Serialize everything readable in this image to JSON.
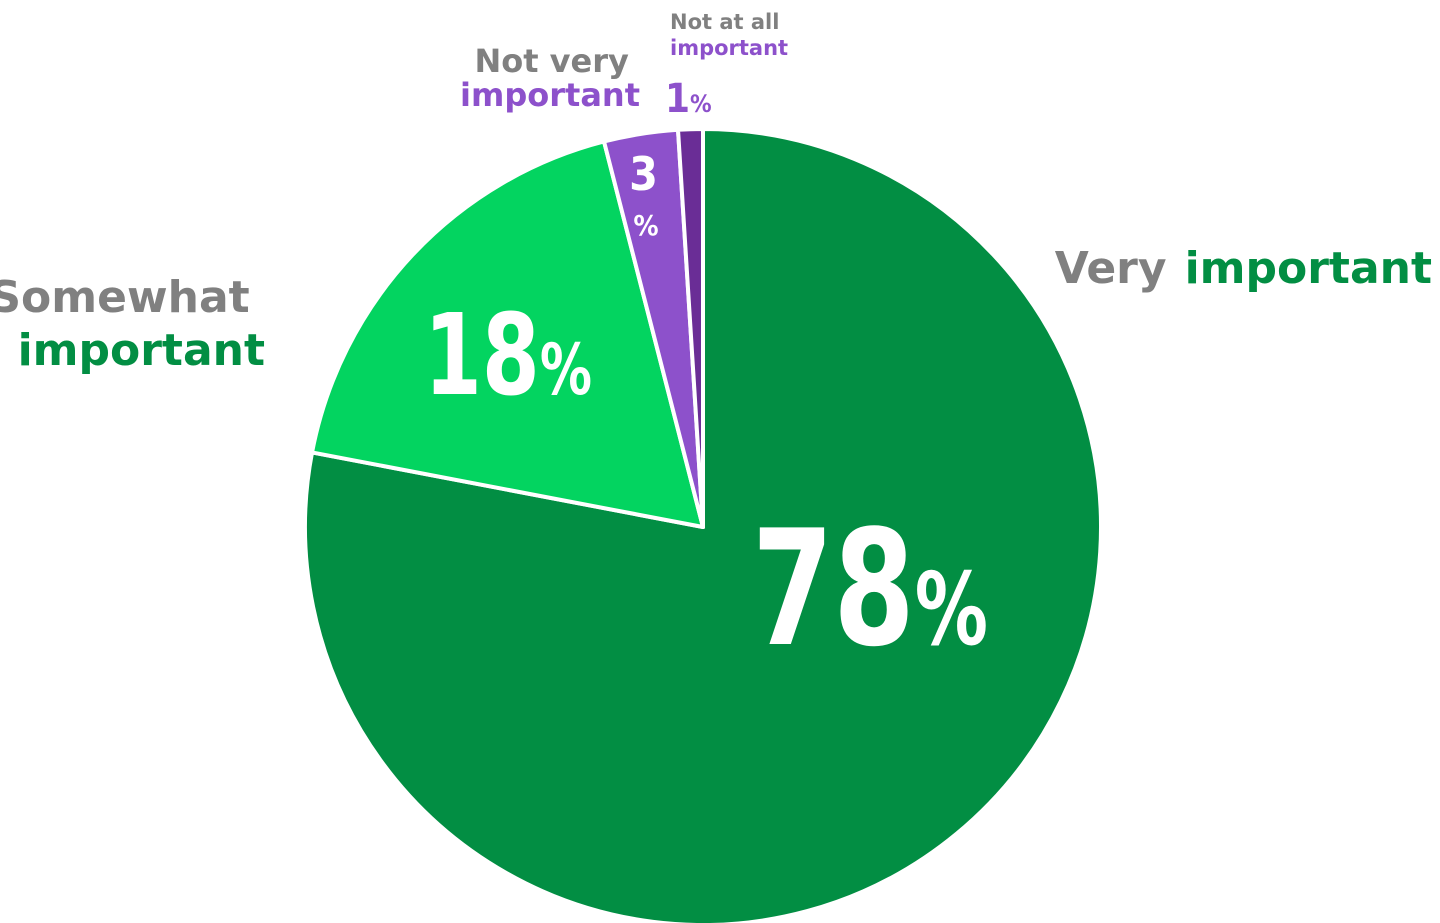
{
  "chart_data": {
    "type": "pie",
    "title": "",
    "slices": [
      {
        "category": "Very important",
        "label_prefix": "Very",
        "label_main": "important",
        "value": 78,
        "display": "78",
        "color": "#028E43",
        "accent": "#028E43"
      },
      {
        "category": "Somewhat important",
        "label_prefix": "Somewhat",
        "label_main": "important",
        "value": 18,
        "display": "18",
        "color": "#03D460",
        "accent": "#028E43"
      },
      {
        "category": "Not very important",
        "label_prefix": "Not very",
        "label_main": "important",
        "value": 3,
        "display": "3",
        "color": "#8D51CB",
        "accent": "#8D51CB"
      },
      {
        "category": "Not at all important",
        "label_prefix": "Not at all",
        "label_main": "important",
        "value": 1,
        "display": "1",
        "color": "#6A2D96",
        "accent": "#8D51CB"
      }
    ],
    "unit_symbol": "%",
    "label_gray": "#808080"
  }
}
